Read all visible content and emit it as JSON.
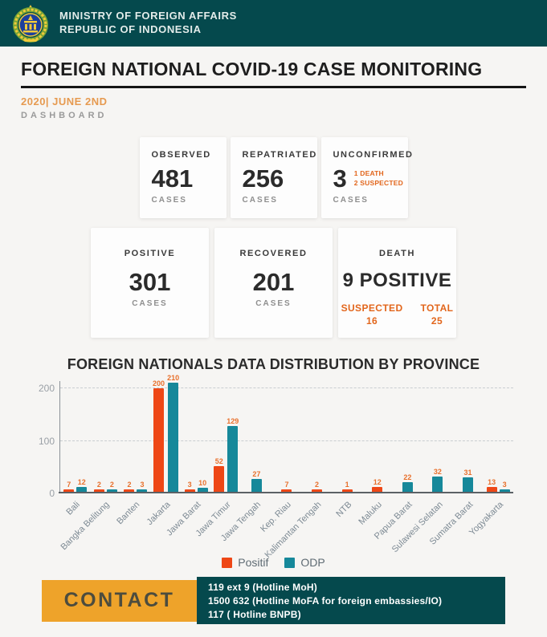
{
  "header": {
    "ministry_line1": "MINISTRY OF FOREIGN AFFAIRS",
    "ministry_line2": "REPUBLIC OF INDONESIA"
  },
  "page": {
    "title": "FOREIGN NATIONAL COVID-19 CASE MONITORING",
    "date": "2020| JUNE 2ND",
    "subtitle": "DASHBOARD"
  },
  "stats_row1": [
    {
      "label": "OBSERVED",
      "value": "481",
      "unit": "CASES"
    },
    {
      "label": "REPATRIATED",
      "value": "256",
      "unit": "CASES"
    },
    {
      "label": "UNCONFIRMED",
      "value": "3",
      "unit": "CASES",
      "note_line1": "1 DEATH",
      "note_line2": "2 SUSPECTED"
    }
  ],
  "stats_row2": [
    {
      "label": "POSITIVE",
      "value": "301",
      "unit": "CASES"
    },
    {
      "label": "RECOVERED",
      "value": "201",
      "unit": "CASES"
    },
    {
      "label": "DEATH",
      "value": "9 POSITIVE",
      "sub1_label": "SUSPECTED",
      "sub1_value": "16",
      "sub2_label": "TOTAL",
      "sub2_value": "25"
    }
  ],
  "chart_data": {
    "type": "bar",
    "title": "FOREIGN NATIONALS DATA DISTRIBUTION BY PROVINCE",
    "categories": [
      "Bali",
      "Bangka Belitung",
      "Banten",
      "Jakarta",
      "Jawa Barat",
      "Jawa Timur",
      "Jawa Tengah",
      "Kep. Riau",
      "Kalimantan Tengah",
      "NTB",
      "Maluku",
      "Papua Barat",
      "Sulawesi Selatan",
      "Sumatra Barat",
      "Yogyakarta"
    ],
    "series": [
      {
        "name": "Positif",
        "color": "#ee4716",
        "values": [
          7,
          2,
          2,
          200,
          3,
          52,
          null,
          7,
          2,
          1,
          12,
          null,
          null,
          null,
          13
        ]
      },
      {
        "name": "ODP",
        "color": "#16889a",
        "values": [
          12,
          2,
          3,
          210,
          10,
          129,
          27,
          null,
          null,
          null,
          null,
          22,
          32,
          31,
          3
        ]
      }
    ],
    "yticks": [
      0,
      100,
      200
    ],
    "ylim": [
      0,
      214
    ],
    "grid": "horizontal-dashed",
    "legend_position": "bottom",
    "data_label_color": "#e8702c"
  },
  "contact": {
    "label": "CONTACT",
    "lines": [
      "119 ext 9 (Hotline MoH)",
      "1500 632 (Hotline MoFA for foreign embassies/IO)",
      "117 ( Hotline BNPB)"
    ]
  },
  "colors": {
    "header_teal": "#05494d",
    "accent_orange": "#e2661c",
    "date_orange": "#e69a50",
    "contact_yellow": "#eea32a",
    "bar_positif": "#ee4716",
    "bar_odp": "#16889a",
    "background": "#f6f5f3"
  }
}
